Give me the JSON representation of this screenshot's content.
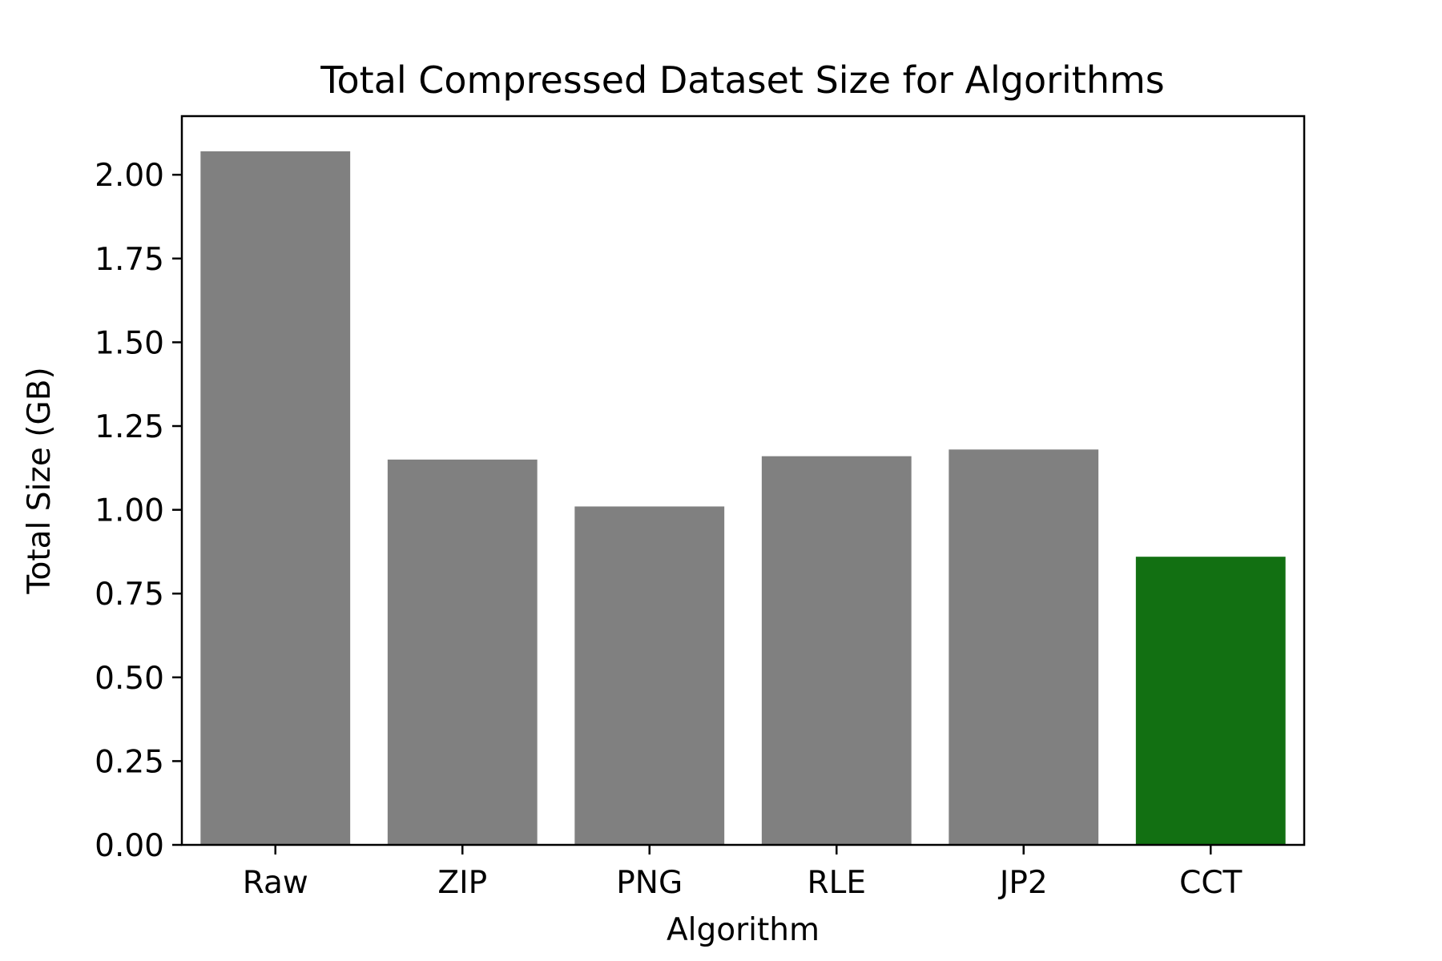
{
  "chart_data": {
    "type": "bar",
    "title": "Total Compressed Dataset Size for Algorithms",
    "xlabel": "Algorithm",
    "ylabel": "Total Size (GB)",
    "categories": [
      "Raw",
      "ZIP",
      "PNG",
      "RLE",
      "JP2",
      "CCT"
    ],
    "values": [
      2.07,
      1.15,
      1.01,
      1.16,
      1.18,
      0.86
    ],
    "colors": [
      "#808080",
      "#808080",
      "#808080",
      "#808080",
      "#808080",
      "#127012"
    ],
    "ylim": [
      0,
      2.175
    ],
    "yticks": [
      0.0,
      0.25,
      0.5,
      0.75,
      1.0,
      1.25,
      1.5,
      1.75,
      2.0
    ],
    "ytick_labels": [
      "0.00",
      "0.25",
      "0.50",
      "0.75",
      "1.00",
      "1.25",
      "1.50",
      "1.75",
      "2.00"
    ],
    "grid": false,
    "legend": "none"
  }
}
